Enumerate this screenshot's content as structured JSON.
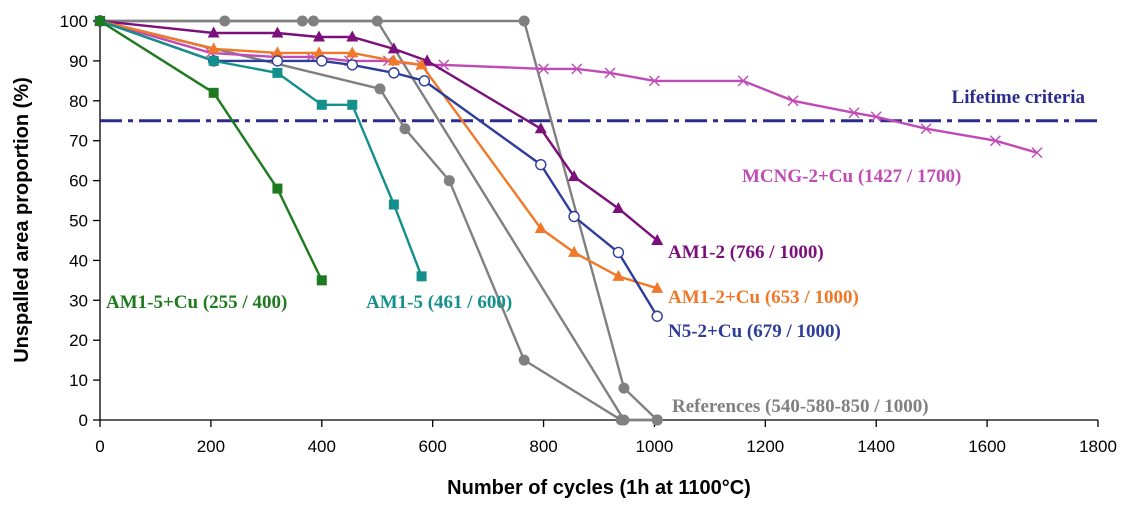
{
  "chart_data": {
    "type": "line",
    "title": "",
    "xlabel": "Number of cycles (1h at 1100°C)",
    "ylabel": "Unspalled area proportion (%)",
    "xlim": [
      0,
      1800
    ],
    "ylim": [
      0,
      100
    ],
    "x_ticks": [
      0,
      200,
      400,
      600,
      800,
      1000,
      1200,
      1400,
      1600,
      1800
    ],
    "y_ticks": [
      0,
      10,
      20,
      30,
      40,
      50,
      60,
      70,
      80,
      90,
      100
    ],
    "grid": false,
    "legend": "none (series labeled inline)",
    "reference_line": {
      "label": "Lifetime criteria",
      "y": 75,
      "color": "#2B2B8F",
      "style": "dash-dot"
    },
    "series": [
      {
        "name": "MCNG-2+Cu (1427 / 1700)",
        "color": "#C04BB6",
        "marker": "x",
        "x": [
          0,
          200,
          315,
          380,
          450,
          520,
          580,
          620,
          800,
          860,
          920,
          1000,
          1160,
          1250,
          1360,
          1400,
          1490,
          1615,
          1690
        ],
        "y": [
          100,
          92,
          91,
          91,
          90,
          90,
          89,
          89,
          88,
          88,
          87,
          85,
          85,
          80,
          77,
          76,
          73,
          70,
          67
        ]
      },
      {
        "name": "AM1-2 (766 / 1000)",
        "color": "#7B0F7B",
        "marker": "triangle",
        "x": [
          0,
          205,
          320,
          395,
          455,
          530,
          590,
          795,
          855,
          935,
          1005
        ],
        "y": [
          100,
          97,
          97,
          96,
          96,
          93,
          90,
          73,
          61,
          53,
          45
        ]
      },
      {
        "name": "AM1-2+Cu (653 / 1000)",
        "color": "#F07828",
        "marker": "triangle",
        "x": [
          0,
          205,
          320,
          395,
          455,
          530,
          580,
          795,
          855,
          935,
          1005
        ],
        "y": [
          100,
          93,
          92,
          92,
          92,
          90,
          89,
          48,
          42,
          36,
          33
        ]
      },
      {
        "name": "N5-2+Cu (679 / 1000)",
        "color": "#2E3D9A",
        "marker": "circle",
        "x": [
          0,
          205,
          320,
          400,
          455,
          530,
          585,
          795,
          855,
          935,
          1005
        ],
        "y": [
          100,
          90,
          90,
          90,
          89,
          87,
          85,
          64,
          51,
          42,
          26
        ]
      },
      {
        "name": "AM1-5 (461 / 600)",
        "color": "#14908C",
        "marker": "square",
        "x": [
          0,
          205,
          320,
          400,
          455,
          530,
          580
        ],
        "y": [
          100,
          90,
          87,
          79,
          79,
          54,
          36
        ]
      },
      {
        "name": "AM1-5+Cu (255 / 400)",
        "color": "#1E7A1E",
        "marker": "square",
        "x": [
          0,
          205,
          320,
          400
        ],
        "y": [
          100,
          82,
          58,
          35
        ]
      },
      {
        "name": "References (540-580-850 / 1000)",
        "color": "#808080",
        "marker": "dot",
        "x": [
          0,
          505,
          550,
          630,
          765,
          940,
          1005
        ],
        "y": [
          100,
          83,
          73,
          60,
          15,
          0,
          0
        ]
      },
      {
        "name": "",
        "color": "#808080",
        "marker": "dot",
        "x": [
          0,
          225,
          365,
          385,
          500,
          945,
          1005
        ],
        "y": [
          100,
          100,
          100,
          100,
          100,
          0,
          0
        ]
      },
      {
        "name": "",
        "color": "#808080",
        "marker": "dot",
        "x": [
          0,
          765,
          945,
          1005
        ],
        "y": [
          100,
          100,
          8,
          0
        ]
      }
    ]
  }
}
